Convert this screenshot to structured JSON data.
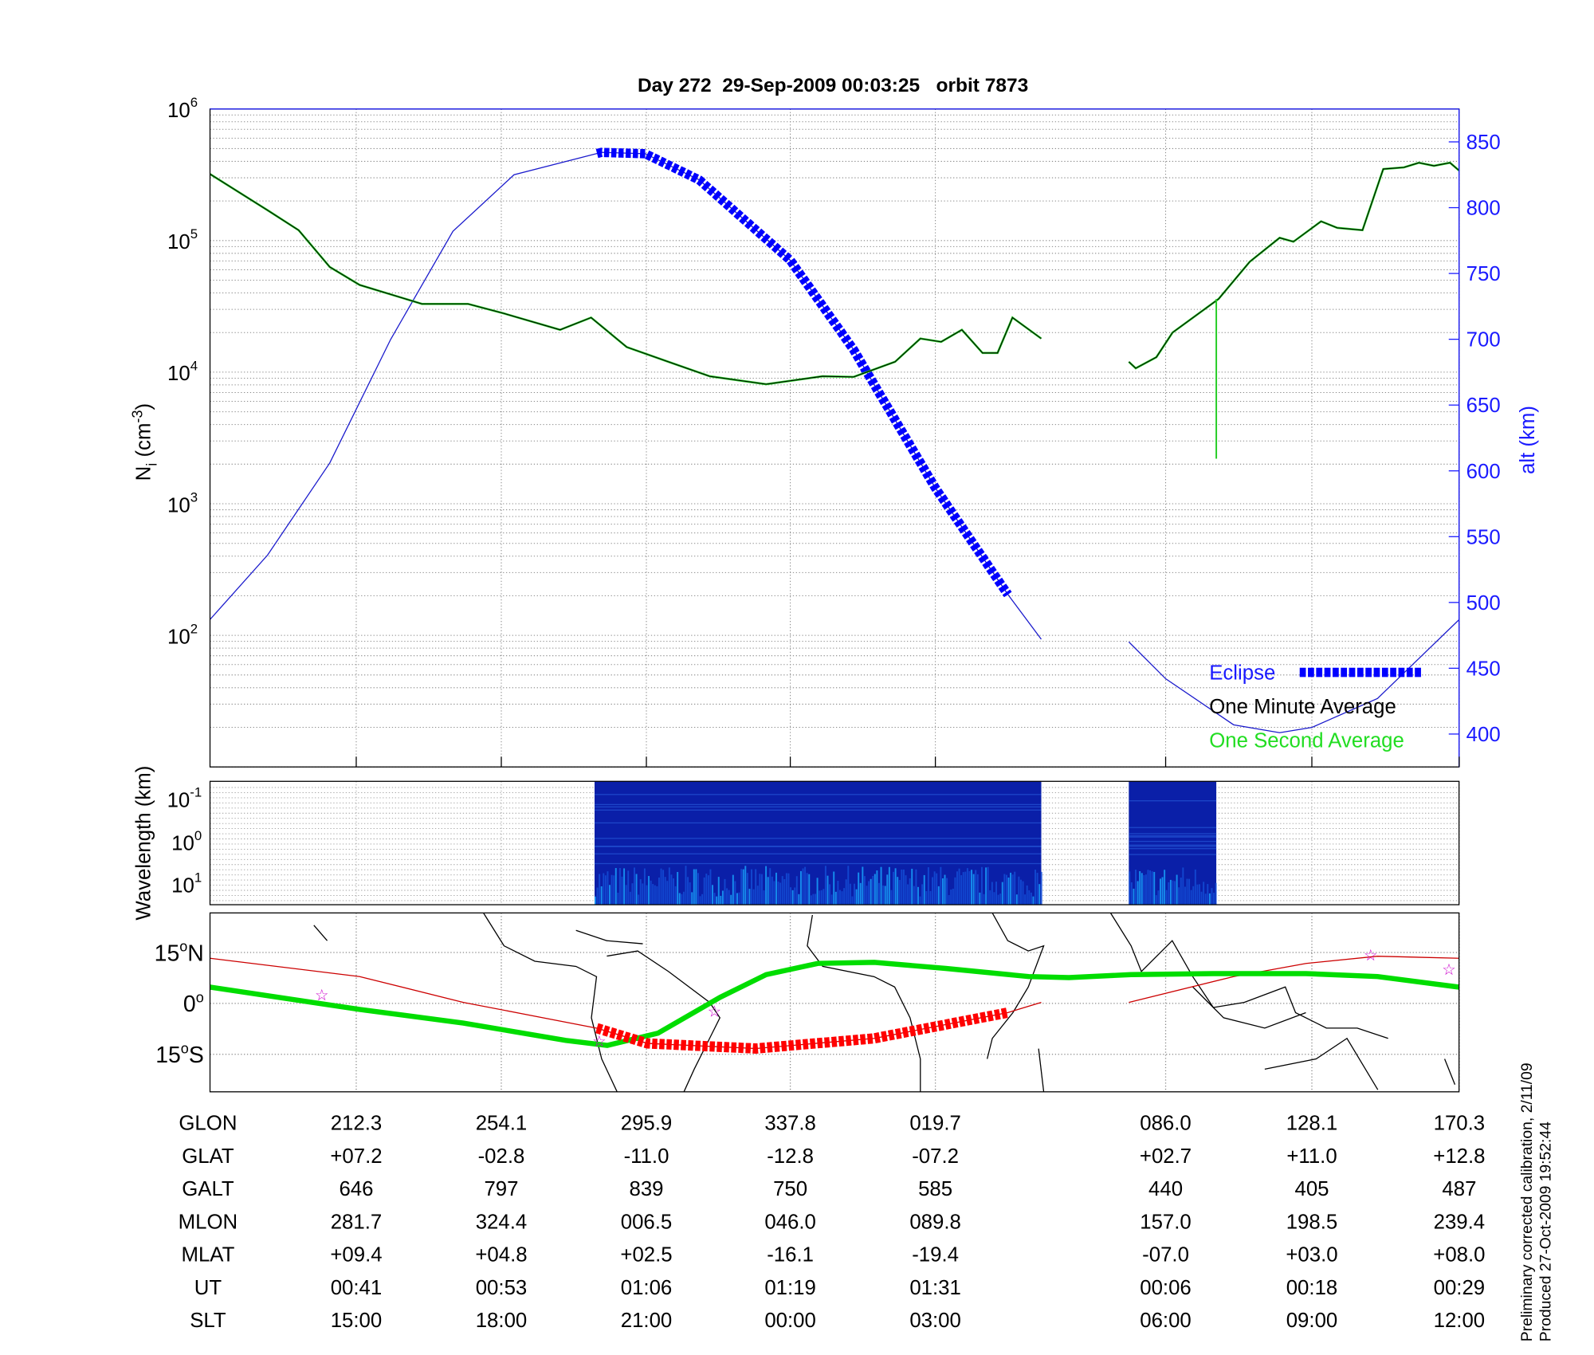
{
  "chart_data": {
    "type": "line",
    "title": "Day 272  29-Sep-2009 00:03:25   orbit 7873",
    "x_unit": "minutes from plot start",
    "xlim": [
      0,
      108.5
    ],
    "data_gap": [
      72.2,
      79.8
    ],
    "density_panel": {
      "ylabel_main": "N",
      "ylabel_sub": "i",
      "ylabel_unit": " (cm",
      "ylabel_exp": "-3",
      "ylabel_close": ")",
      "yscale": "log",
      "ylim": [
        10,
        1000000
      ],
      "yticks": [
        {
          "base": "10",
          "exp": "6",
          "value": 1000000
        },
        {
          "base": "10",
          "exp": "5",
          "value": 100000
        },
        {
          "base": "10",
          "exp": "4",
          "value": 10000
        },
        {
          "base": "10",
          "exp": "3",
          "value": 1000
        },
        {
          "base": "10",
          "exp": "2",
          "value": 100
        }
      ],
      "right_ylabel": "alt (km)",
      "right_ylim": [
        375,
        875
      ],
      "right_yticks": [
        "850",
        "800",
        "750",
        "700",
        "650",
        "600",
        "550",
        "500",
        "450",
        "400"
      ],
      "one_minute_average": [
        [
          0,
          320000
        ],
        [
          5,
          170000
        ],
        [
          7.7,
          120000
        ],
        [
          10.4,
          63000
        ],
        [
          13,
          46000
        ],
        [
          18.4,
          33000
        ],
        [
          22.4,
          33000
        ],
        [
          25.5,
          28000
        ],
        [
          30.4,
          21000
        ],
        [
          33.1,
          26000
        ],
        [
          36.2,
          15500
        ],
        [
          39.8,
          12000
        ],
        [
          43.4,
          9300
        ],
        [
          48.3,
          8100
        ],
        [
          53.2,
          9300
        ],
        [
          55.9,
          9200
        ],
        [
          59.5,
          12000
        ],
        [
          61.7,
          18000
        ],
        [
          63.5,
          17000
        ],
        [
          65.3,
          21000
        ],
        [
          67.1,
          14000
        ],
        [
          68.4,
          14000
        ],
        [
          69.7,
          26000
        ],
        [
          72.2,
          18000
        ],
        null,
        [
          79.8,
          12000
        ],
        [
          80.4,
          10700
        ],
        [
          82.2,
          13000
        ],
        [
          83.6,
          20000
        ],
        [
          87.6,
          36000
        ],
        [
          90.3,
          69000
        ],
        [
          92.9,
          105000
        ],
        [
          94.1,
          98000
        ],
        [
          96.5,
          140000
        ],
        [
          97.9,
          125000
        ],
        [
          100.1,
          120000
        ],
        [
          101.9,
          350000
        ],
        [
          103.7,
          360000
        ],
        [
          105,
          390000
        ],
        [
          106.3,
          370000
        ],
        [
          107.7,
          390000
        ],
        [
          108.5,
          340000
        ]
      ],
      "one_second_spike": {
        "minute": 87.4,
        "from": 36000,
        "to": 2200
      },
      "altitude_km": [
        [
          0,
          487
        ],
        [
          5,
          536
        ],
        [
          10.4,
          606
        ],
        [
          15.7,
          700
        ],
        [
          21.1,
          782
        ],
        [
          26.4,
          825
        ],
        [
          34,
          842
        ],
        [
          37.8,
          841
        ],
        [
          42.5,
          821
        ],
        [
          50.4,
          760
        ],
        [
          55.9,
          692
        ],
        [
          63,
          587
        ],
        [
          69.3,
          506
        ],
        [
          72.2,
          472
        ],
        null,
        [
          79.8,
          470
        ],
        [
          83,
          442
        ],
        [
          88.9,
          407
        ],
        [
          92.9,
          401
        ],
        [
          95.7,
          405
        ],
        [
          101.4,
          427
        ],
        [
          108.5,
          487
        ]
      ],
      "eclipse_range": [
        33.6,
        69.3
      ],
      "legend": [
        {
          "label": "Eclipse",
          "color": "#0000ff"
        },
        {
          "label": "One Minute Average",
          "color": "#000000"
        },
        {
          "label": "One Second Average",
          "color": "#00dd00"
        }
      ],
      "legend_position": "bottom-right"
    },
    "spectrogram_panel": {
      "ylabel": "Wavelength (km)",
      "yticks": [
        {
          "base": "10",
          "exp": "-1"
        },
        {
          "base": "10",
          "exp": "0"
        },
        {
          "base": "10",
          "exp": "1"
        }
      ],
      "data_ranges": [
        [
          33.4,
          72.2
        ],
        [
          79.8,
          87.4
        ]
      ],
      "colormap": "jet"
    },
    "map_panel": {
      "yticks": [
        {
          "deg": "15",
          "hemi": "N",
          "value": 15
        },
        {
          "deg": "0",
          "hemi": "",
          "value": 0
        },
        {
          "deg": "15",
          "hemi": "S",
          "value": -15
        }
      ],
      "satellite_track_lat": [
        [
          0,
          13.3
        ],
        [
          13,
          7.9
        ],
        [
          22,
          0.3
        ],
        [
          33.6,
          -7.3
        ],
        [
          38,
          -11.8
        ],
        [
          47.4,
          -13.3
        ],
        [
          57.7,
          -10.3
        ],
        [
          69.3,
          -2.7
        ],
        [
          72.2,
          0.3
        ],
        null,
        [
          79.8,
          0.3
        ],
        [
          88.9,
          7.9
        ],
        [
          95.2,
          11.8
        ],
        [
          101.4,
          13.9
        ],
        [
          108.5,
          13.3
        ]
      ],
      "eclipse_range": [
        33.6,
        69.3
      ],
      "dip_equator_lat": [
        [
          0,
          4.8
        ],
        [
          13,
          -1.8
        ],
        [
          22,
          -5.8
        ],
        [
          30.9,
          -10.9
        ],
        [
          34.5,
          -12.4
        ],
        [
          38.9,
          -8.8
        ],
        [
          44.3,
          1.8
        ],
        [
          48.3,
          8.5
        ],
        [
          52.8,
          11.8
        ],
        [
          57.7,
          12.1
        ],
        [
          63.9,
          10.3
        ],
        [
          71.1,
          7.9
        ],
        [
          74.6,
          7.6
        ],
        [
          80,
          8.5
        ],
        [
          87.1,
          8.8
        ],
        [
          95.2,
          8.8
        ],
        [
          101.4,
          7.9
        ],
        [
          108.5,
          4.8
        ]
      ],
      "star_markers": [
        [
          9.7,
          2.4
        ],
        [
          33.8,
          -11.2
        ],
        [
          43.8,
          -2.4
        ],
        [
          100.8,
          14.2
        ],
        [
          107.6,
          10
        ]
      ],
      "track_color": "#cc0000",
      "eclipse_color": "#ff0000",
      "equator_color": "#00dd00",
      "star_color": "#cc00cc"
    },
    "table": {
      "column_minutes": [
        12.7,
        25.3,
        37.9,
        50.4,
        63.0,
        83.0,
        95.7,
        108.5
      ],
      "rows": [
        {
          "label": "GLON",
          "values": [
            "212.3",
            "254.1",
            "295.9",
            "337.8",
            "019.7",
            "086.0",
            "128.1",
            "170.3"
          ]
        },
        {
          "label": "GLAT",
          "values": [
            "+07.2",
            "-02.8",
            "-11.0",
            "-12.8",
            "-07.2",
            "+02.7",
            "+11.0",
            "+12.8"
          ]
        },
        {
          "label": "GALT",
          "values": [
            "646",
            "797",
            "839",
            "750",
            "585",
            "440",
            "405",
            "487"
          ]
        },
        {
          "label": "MLON",
          "values": [
            "281.7",
            "324.4",
            "006.5",
            "046.0",
            "089.8",
            "157.0",
            "198.5",
            "239.4"
          ]
        },
        {
          "label": "MLAT",
          "values": [
            "+09.4",
            "+04.8",
            "+02.5",
            "-16.1",
            "-19.4",
            "-07.0",
            "+03.0",
            "+08.0"
          ]
        },
        {
          "label": "UT",
          "values": [
            "00:41",
            "00:53",
            "01:06",
            "01:19",
            "01:31",
            "00:06",
            "00:18",
            "00:29"
          ]
        },
        {
          "label": "SLT",
          "values": [
            "15:00",
            "18:00",
            "21:00",
            "00:00",
            "03:00",
            "06:00",
            "09:00",
            "12:00"
          ]
        }
      ]
    },
    "footer": {
      "line1": "Preliminary corrected calibration, 2/11/09",
      "line2": "Produced 27-Oct-2009 19:52:44"
    }
  }
}
